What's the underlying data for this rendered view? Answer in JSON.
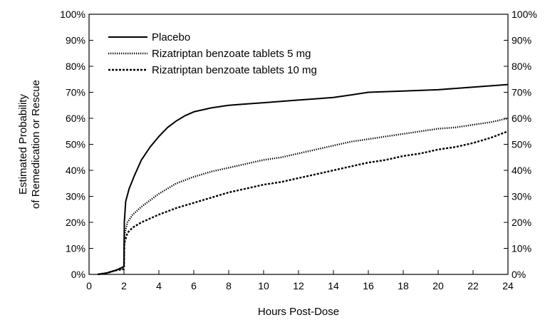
{
  "chart_data": {
    "type": "line",
    "title": "",
    "xlabel": "Hours Post-Dose",
    "ylabel_lines": [
      "Estimated Probability",
      "of Remedication or Rescue"
    ],
    "xlim": [
      0,
      24
    ],
    "ylim": [
      0,
      100
    ],
    "x_ticks": [
      0,
      2,
      4,
      6,
      8,
      10,
      12,
      14,
      16,
      18,
      20,
      22,
      24
    ],
    "y_ticks": [
      0,
      10,
      20,
      30,
      40,
      50,
      60,
      70,
      80,
      90,
      100
    ],
    "y_tick_labels": [
      "0%",
      "10%",
      "20%",
      "30%",
      "40%",
      "50%",
      "60%",
      "70%",
      "80%",
      "90%",
      "100%"
    ],
    "right_axis_labels": true,
    "grid": false,
    "legend_position": "top-left",
    "series": [
      {
        "name": "Placebo",
        "style": "solid",
        "color": "#000000",
        "points": [
          [
            0.5,
            0
          ],
          [
            1,
            0.5
          ],
          [
            1.5,
            1.5
          ],
          [
            2,
            3
          ],
          [
            2.02,
            20
          ],
          [
            2.1,
            28
          ],
          [
            2.3,
            33
          ],
          [
            2.6,
            38
          ],
          [
            3,
            44
          ],
          [
            3.5,
            49
          ],
          [
            4,
            53
          ],
          [
            4.5,
            56.5
          ],
          [
            5,
            59
          ],
          [
            5.5,
            61
          ],
          [
            6,
            62.5
          ],
          [
            7,
            64
          ],
          [
            8,
            65
          ],
          [
            9,
            65.5
          ],
          [
            10,
            66
          ],
          [
            11,
            66.5
          ],
          [
            12,
            67
          ],
          [
            13,
            67.5
          ],
          [
            14,
            68
          ],
          [
            15,
            69
          ],
          [
            16,
            70
          ],
          [
            18,
            70.5
          ],
          [
            20,
            71
          ],
          [
            22,
            72
          ],
          [
            24,
            73
          ]
        ]
      },
      {
        "name": "Rizatriptan benzoate tablets 5 mg",
        "style": "dotted",
        "color": "#000000",
        "points": [
          [
            0.5,
            0
          ],
          [
            1,
            0.5
          ],
          [
            1.5,
            1.5
          ],
          [
            2,
            2.5
          ],
          [
            2.02,
            15
          ],
          [
            2.2,
            20
          ],
          [
            2.5,
            23
          ],
          [
            3,
            26
          ],
          [
            4,
            31
          ],
          [
            5,
            35
          ],
          [
            6,
            37.5
          ],
          [
            7,
            39.5
          ],
          [
            8,
            41
          ],
          [
            9,
            42.5
          ],
          [
            10,
            44
          ],
          [
            11,
            45
          ],
          [
            12,
            46.5
          ],
          [
            13,
            48
          ],
          [
            14,
            49.5
          ],
          [
            15,
            51
          ],
          [
            16,
            52
          ],
          [
            17,
            53
          ],
          [
            18,
            54
          ],
          [
            19,
            55
          ],
          [
            20,
            56
          ],
          [
            21,
            56.5
          ],
          [
            22,
            57.5
          ],
          [
            23,
            58.5
          ],
          [
            24,
            60
          ]
        ]
      },
      {
        "name": "Rizatriptan benzoate tablets 10 mg",
        "style": "dashed",
        "color": "#000000",
        "points": [
          [
            0.5,
            0
          ],
          [
            1,
            0.5
          ],
          [
            1.5,
            1.5
          ],
          [
            2,
            2
          ],
          [
            2.02,
            12
          ],
          [
            2.2,
            16
          ],
          [
            2.5,
            18
          ],
          [
            3,
            20
          ],
          [
            4,
            23
          ],
          [
            5,
            25.5
          ],
          [
            6,
            27.5
          ],
          [
            7,
            29.5
          ],
          [
            8,
            31.5
          ],
          [
            9,
            33
          ],
          [
            10,
            34.5
          ],
          [
            11,
            35.5
          ],
          [
            12,
            37
          ],
          [
            13,
            38.5
          ],
          [
            14,
            40
          ],
          [
            15,
            41.5
          ],
          [
            16,
            43
          ],
          [
            17,
            44
          ],
          [
            18,
            45.5
          ],
          [
            19,
            46.5
          ],
          [
            20,
            48
          ],
          [
            21,
            49
          ],
          [
            22,
            50.5
          ],
          [
            23,
            52.5
          ],
          [
            24,
            55
          ]
        ]
      }
    ]
  }
}
